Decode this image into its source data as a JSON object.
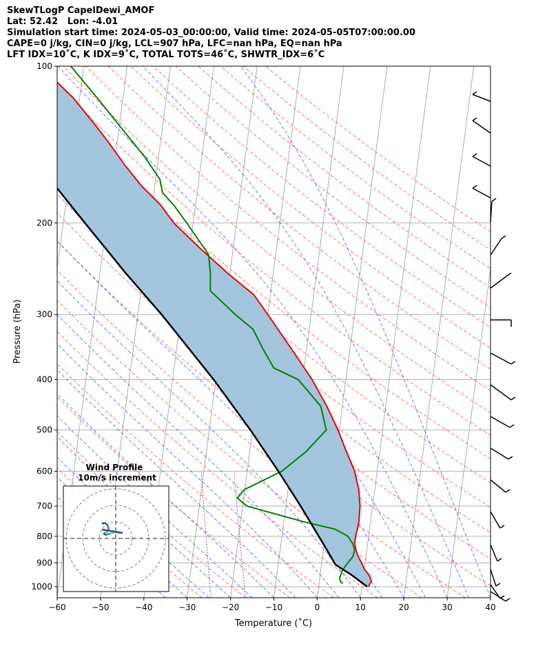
{
  "header": {
    "line1": "SkewTLogP CapelDewi_AMOF",
    "line2": "Lat: 52.42   Lon: -4.01",
    "line3": "Simulation start time: 2024-05-03_00:00:00, Valid time: 2024-05-05T07:00:00.00",
    "line4": "CAPE=0 j/kg, CIN=0 j/kg, LCL=907 hPa, LFC=nan hPa, EQ=nan hPa",
    "line5": "LFT IDX=10˚C, K IDX=9˚C, TOTAL TOTS=46˚C, SHWTR_IDX=6˚C"
  },
  "chart_data": {
    "type": "line",
    "subtype": "skew-T log-P",
    "xlabel": "Temperature (˚C)",
    "ylabel": "Pressure (hPa)",
    "xlim": [
      -60,
      40
    ],
    "ylim": [
      1050,
      100
    ],
    "y_scale": "log",
    "x_ticks": [
      "−60",
      "−50",
      "−40",
      "−30",
      "−20",
      "−10",
      "0",
      "10",
      "20",
      "30",
      "40"
    ],
    "y_ticks": [
      "100",
      "200",
      "300",
      "400",
      "500",
      "600",
      "700",
      "800",
      "900",
      "1000"
    ],
    "colors": {
      "temperature": "#e80000",
      "dewpoint": "#008000",
      "parcel": "#000000",
      "fill": "#a3c6de",
      "dry_adiabat": "#ff6060",
      "moist_adiabat": "#5060ff",
      "mixing_ratio": "#9040c0",
      "isotherm": "#aaaaaa"
    },
    "series": [
      {
        "key": "temperature",
        "points": [
          [
            1000,
            11.5
          ],
          [
            975,
            12.0
          ],
          [
            950,
            11.3
          ],
          [
            925,
            10.0
          ],
          [
            900,
            9.2
          ],
          [
            875,
            8.2
          ],
          [
            850,
            7.5
          ],
          [
            825,
            7.0
          ],
          [
            800,
            7.0
          ],
          [
            775,
            7.2
          ],
          [
            750,
            7.3
          ],
          [
            700,
            7.1
          ],
          [
            650,
            6.3
          ],
          [
            600,
            4.8
          ],
          [
            550,
            2.3
          ],
          [
            500,
            -0.3
          ],
          [
            450,
            -3.6
          ],
          [
            400,
            -7.8
          ],
          [
            350,
            -13.4
          ],
          [
            300,
            -20.0
          ],
          [
            275,
            -23.8
          ],
          [
            250,
            -30.5
          ],
          [
            225,
            -37.3
          ],
          [
            200,
            -44.5
          ],
          [
            185,
            -48.0
          ],
          [
            170,
            -53.0
          ],
          [
            155,
            -57.5
          ],
          [
            140,
            -62.0
          ],
          [
            130,
            -65.5
          ],
          [
            115,
            -71.5
          ],
          [
            100,
            -80.0
          ]
        ]
      },
      {
        "key": "dewpoint",
        "points": [
          [
            985,
            5.5
          ],
          [
            980,
            5.0
          ],
          [
            975,
            4.8
          ],
          [
            960,
            4.6
          ],
          [
            930,
            5.0
          ],
          [
            900,
            6.0
          ],
          [
            875,
            7.0
          ],
          [
            850,
            7.2
          ],
          [
            825,
            6.5
          ],
          [
            800,
            5.2
          ],
          [
            775,
            2.0
          ],
          [
            750,
            -5.5
          ],
          [
            700,
            -19.0
          ],
          [
            675,
            -21.5
          ],
          [
            650,
            -20.0
          ],
          [
            600,
            -12.0
          ],
          [
            550,
            -7.0
          ],
          [
            500,
            -3.0
          ],
          [
            450,
            -5.0
          ],
          [
            400,
            -11.0
          ],
          [
            380,
            -17.0
          ],
          [
            350,
            -20.0
          ],
          [
            320,
            -23.0
          ],
          [
            300,
            -27.5
          ],
          [
            270,
            -34.0
          ],
          [
            250,
            -34.5
          ],
          [
            230,
            -35.5
          ],
          [
            200,
            -41.5
          ],
          [
            185,
            -45.0
          ],
          [
            175,
            -48.0
          ],
          [
            165,
            -49.0
          ],
          [
            150,
            -53.0
          ],
          [
            130,
            -60.0
          ],
          [
            115,
            -66.0
          ],
          [
            100,
            -73.0
          ]
        ]
      },
      {
        "key": "parcel",
        "points": [
          [
            1000,
            11.2
          ],
          [
            950,
            7.3
          ],
          [
            907,
            3.2
          ],
          [
            850,
            0.8
          ],
          [
            800,
            -1.5
          ],
          [
            700,
            -6.6
          ],
          [
            600,
            -12.8
          ],
          [
            500,
            -20.5
          ],
          [
            400,
            -30.5
          ],
          [
            300,
            -44.5
          ],
          [
            250,
            -54.0
          ],
          [
            200,
            -65.0
          ],
          [
            150,
            -79.0
          ],
          [
            100,
            -99.0
          ]
        ]
      }
    ],
    "inset": {
      "title_line1": "Wind Profile",
      "title_line2": "10m/s increment"
    }
  }
}
